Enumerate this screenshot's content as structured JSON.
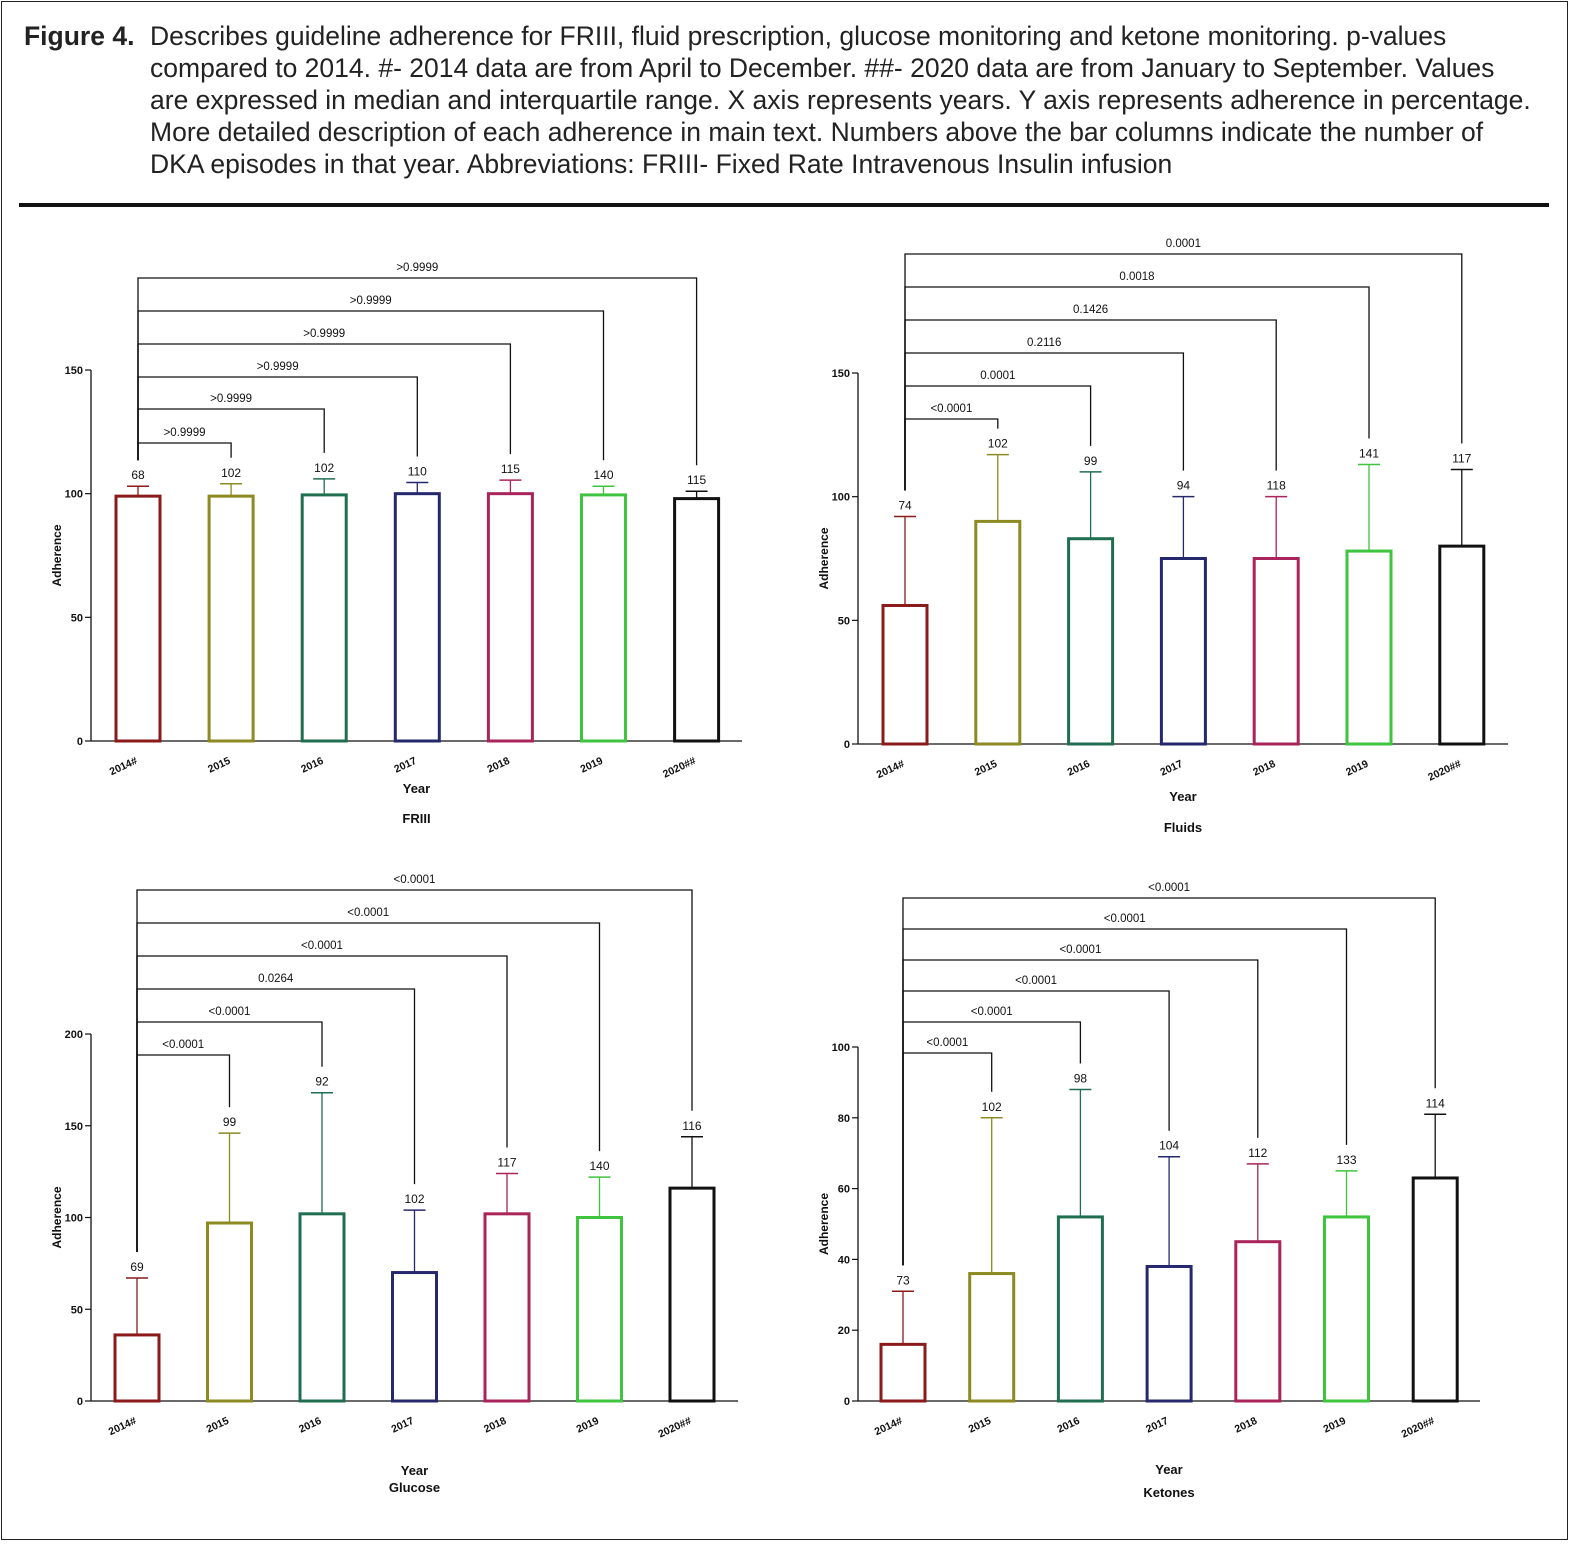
{
  "caption": {
    "label": "Figure 4.",
    "text": "Describes guideline adherence for FRIII, fluid prescription, glucose monitoring and ketone monitoring. p-values compared to 2014. #- 2014 data are from April to December. ##- 2020 data are from January to September. Values are expressed in median and interquartile range. X axis represents years. Y axis represents adherence in percentage. More detailed description of each adherence in main text. Numbers above the bar columns indicate the number of DKA episodes in that year. Abbreviations: FRIII- Fixed Rate Intravenous Insulin infusion"
  },
  "colors": [
    "#8b1a1a",
    "#8c8a20",
    "#1f6e50",
    "#26286e",
    "#a8245a",
    "#3fc43f",
    "#111111"
  ],
  "chart_data": [
    {
      "type": "bar",
      "title": "FRIII",
      "xlabel": "Year",
      "ylabel": "Adherence",
      "categories": [
        "2014#",
        "2015",
        "2016",
        "2017",
        "2018",
        "2019",
        "2020##"
      ],
      "values": [
        99,
        99,
        99.5,
        100,
        100,
        99.5,
        98
      ],
      "error_upper": [
        103,
        104,
        106,
        104.5,
        105.5,
        103,
        101
      ],
      "n_episodes": [
        "68",
        "102",
        "102",
        "110",
        "115",
        "140",
        "115"
      ],
      "yticks": [
        0,
        50,
        100,
        150
      ],
      "ylim": [
        0,
        150
      ],
      "comparisons": [
        {
          "to": 1,
          "p": ">0.9999"
        },
        {
          "to": 2,
          "p": ">0.9999"
        },
        {
          "to": 3,
          "p": ">0.9999"
        },
        {
          "to": 4,
          "p": ">0.9999"
        },
        {
          "to": 5,
          "p": ">0.9999"
        },
        {
          "to": 6,
          "p": ">0.9999"
        }
      ]
    },
    {
      "type": "bar",
      "title": "Fluids",
      "xlabel": "Year",
      "ylabel": "Adherence",
      "categories": [
        "2014#",
        "2015",
        "2016",
        "2017",
        "2018",
        "2019",
        "2020##"
      ],
      "values": [
        56,
        90,
        83,
        75,
        75,
        78,
        80
      ],
      "error_upper": [
        92,
        117,
        110,
        100,
        100,
        113,
        111
      ],
      "n_episodes": [
        "74",
        "102",
        "99",
        "94",
        "118",
        "141",
        "117"
      ],
      "yticks": [
        0,
        50,
        100,
        150
      ],
      "ylim": [
        0,
        150
      ],
      "comparisons": [
        {
          "to": 1,
          "p": "<0.0001"
        },
        {
          "to": 2,
          "p": "0.0001"
        },
        {
          "to": 3,
          "p": "0.2116"
        },
        {
          "to": 4,
          "p": "0.1426"
        },
        {
          "to": 5,
          "p": "0.0018"
        },
        {
          "to": 6,
          "p": "0.0001"
        }
      ]
    },
    {
      "type": "bar",
      "title": "Glucose",
      "xlabel": "Year",
      "ylabel": "Adherence",
      "categories": [
        "2014#",
        "2015",
        "2016",
        "2017",
        "2018",
        "2019",
        "2020##"
      ],
      "values": [
        36,
        97,
        102,
        70,
        102,
        100,
        116
      ],
      "error_upper": [
        67,
        146,
        168,
        104,
        124,
        122,
        144
      ],
      "n_episodes": [
        "69",
        "99",
        "92",
        "102",
        "117",
        "140",
        "116"
      ],
      "yticks": [
        0,
        50,
        100,
        150,
        200
      ],
      "ylim": [
        0,
        200
      ],
      "comparisons": [
        {
          "to": 1,
          "p": "<0.0001"
        },
        {
          "to": 2,
          "p": "<0.0001"
        },
        {
          "to": 3,
          "p": "0.0264"
        },
        {
          "to": 4,
          "p": "<0.0001"
        },
        {
          "to": 5,
          "p": "<0.0001"
        },
        {
          "to": 6,
          "p": "<0.0001"
        }
      ]
    },
    {
      "type": "bar",
      "title": "Ketones",
      "xlabel": "Year",
      "ylabel": "Adherence",
      "categories": [
        "2014#",
        "2015",
        "2016",
        "2017",
        "2018",
        "2019",
        "2020##"
      ],
      "values": [
        16,
        36,
        52,
        38,
        45,
        52,
        63
      ],
      "error_upper": [
        31,
        80,
        88,
        69,
        67,
        65,
        81
      ],
      "n_episodes": [
        "73",
        "102",
        "98",
        "104",
        "112",
        "133",
        "114"
      ],
      "yticks": [
        0,
        20,
        40,
        60,
        80,
        100
      ],
      "ylim": [
        0,
        100
      ],
      "comparisons": [
        {
          "to": 1,
          "p": "<0.0001"
        },
        {
          "to": 2,
          "p": "<0.0001"
        },
        {
          "to": 3,
          "p": "<0.0001"
        },
        {
          "to": 4,
          "p": "<0.0001"
        },
        {
          "to": 5,
          "p": "<0.0001"
        },
        {
          "to": 6,
          "p": "<0.0001"
        }
      ]
    }
  ]
}
